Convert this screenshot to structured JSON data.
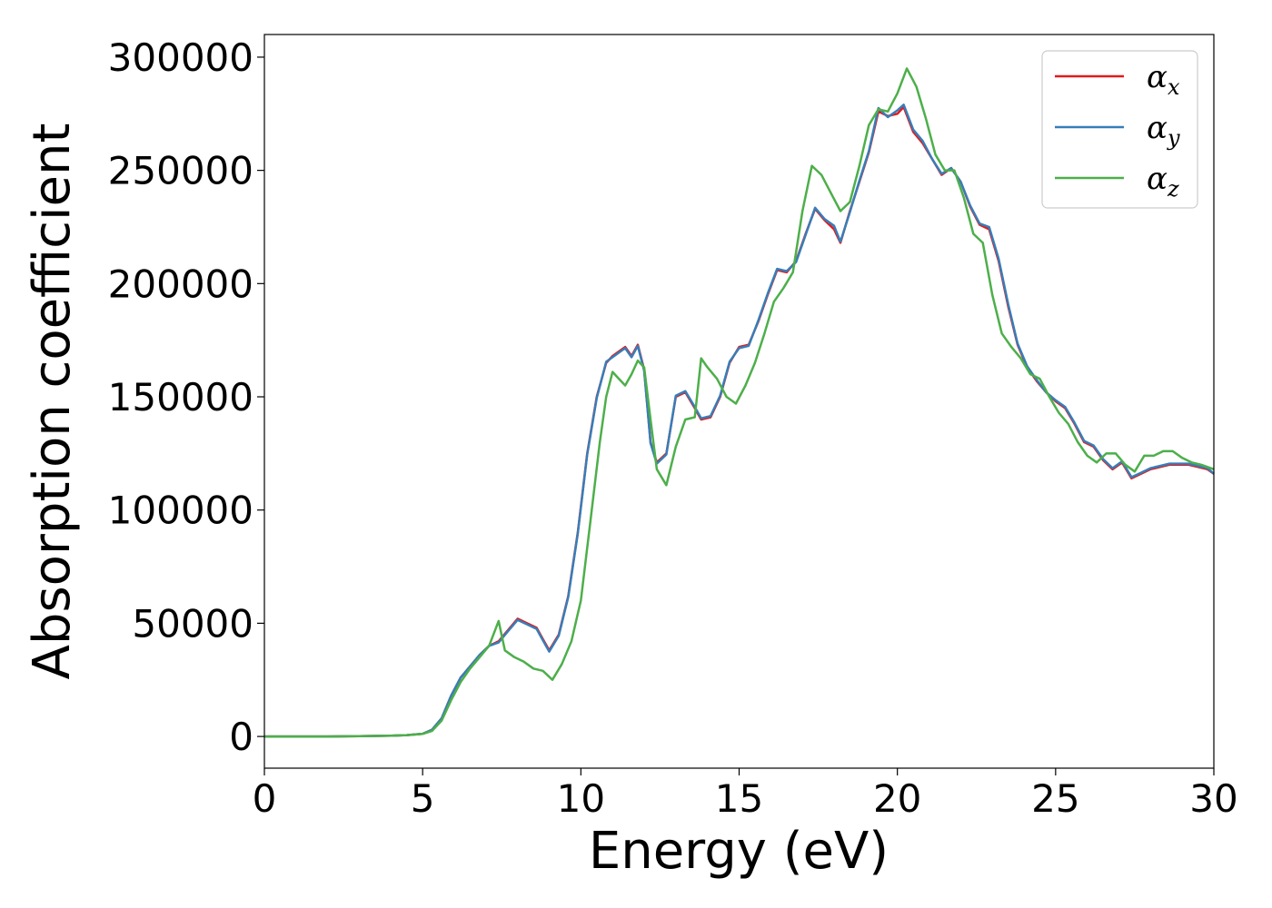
{
  "chart_data": {
    "type": "line",
    "title": "",
    "xlabel": "Energy (eV)",
    "ylabel": "Absorption coefficient",
    "xlim": [
      0,
      30
    ],
    "ylim": [
      -14000,
      310000
    ],
    "xticks": [
      0,
      5,
      10,
      15,
      20,
      25,
      30
    ],
    "xtick_labels": [
      "0",
      "5",
      "10",
      "15",
      "20",
      "25",
      "30"
    ],
    "yticks": [
      0,
      50000,
      100000,
      150000,
      200000,
      250000,
      300000
    ],
    "ytick_labels": [
      "0",
      "50000",
      "100000",
      "150000",
      "200000",
      "250000",
      "300000"
    ],
    "grid": false,
    "legend_position": "top-right",
    "series": [
      {
        "name": "α",
        "subscript": "x",
        "color": "#e41a1c",
        "x": [
          0,
          1,
          2,
          3,
          4,
          4.5,
          5,
          5.3,
          5.6,
          5.9,
          6.2,
          6.5,
          6.8,
          7.1,
          7.4,
          7.7,
          8.0,
          8.3,
          8.6,
          8.8,
          9.0,
          9.3,
          9.6,
          9.9,
          10.2,
          10.5,
          10.8,
          11.0,
          11.2,
          11.4,
          11.6,
          11.8,
          12.0,
          12.2,
          12.4,
          12.7,
          13.0,
          13.3,
          13.6,
          13.8,
          14.1,
          14.4,
          14.7,
          15.0,
          15.3,
          15.6,
          15.9,
          16.2,
          16.5,
          16.8,
          17.1,
          17.4,
          17.7,
          18.0,
          18.2,
          18.5,
          18.8,
          19.1,
          19.4,
          19.7,
          20.0,
          20.2,
          20.5,
          20.8,
          21.1,
          21.4,
          21.7,
          22.0,
          22.3,
          22.6,
          22.9,
          23.2,
          23.5,
          23.8,
          24.1,
          24.4,
          24.7,
          25.0,
          25.3,
          25.6,
          25.9,
          26.2,
          26.5,
          26.8,
          27.1,
          27.4,
          27.7,
          28.0,
          28.3,
          28.6,
          28.9,
          29.2,
          29.5,
          29.8,
          30.0
        ],
        "y": [
          0,
          0,
          0,
          100,
          300,
          600,
          1200,
          3000,
          8000,
          18000,
          26000,
          31000,
          36000,
          40000,
          42000,
          47000,
          52000,
          50000,
          48000,
          43000,
          38000,
          45000,
          62000,
          90000,
          125000,
          150000,
          165000,
          168000,
          170000,
          172000,
          168000,
          173000,
          162000,
          130000,
          121000,
          125000,
          150000,
          152000,
          145000,
          140000,
          141000,
          150000,
          165000,
          172000,
          173000,
          183000,
          195000,
          206000,
          205000,
          210000,
          222000,
          233000,
          228000,
          224000,
          218000,
          232000,
          245000,
          258000,
          276000,
          274000,
          275000,
          278000,
          267000,
          262000,
          255000,
          248000,
          251000,
          245000,
          234000,
          226000,
          224000,
          210000,
          190000,
          173000,
          163000,
          157000,
          152000,
          148000,
          145000,
          138000,
          130000,
          128000,
          122000,
          118000,
          121000,
          114000,
          116000,
          118000,
          119000,
          120000,
          120000,
          120000,
          119000,
          118000,
          116000
        ]
      },
      {
        "name": "α",
        "subscript": "y",
        "color": "#377eb8",
        "x": [
          0,
          1,
          2,
          3,
          4,
          4.5,
          5,
          5.3,
          5.6,
          5.9,
          6.2,
          6.5,
          6.8,
          7.1,
          7.4,
          7.7,
          8.0,
          8.3,
          8.6,
          8.8,
          9.0,
          9.3,
          9.6,
          9.9,
          10.2,
          10.5,
          10.8,
          11.0,
          11.2,
          11.4,
          11.6,
          11.8,
          12.0,
          12.2,
          12.4,
          12.7,
          13.0,
          13.3,
          13.6,
          13.8,
          14.1,
          14.4,
          14.7,
          15.0,
          15.3,
          15.6,
          15.9,
          16.2,
          16.5,
          16.8,
          17.1,
          17.4,
          17.7,
          18.0,
          18.2,
          18.5,
          18.8,
          19.1,
          19.4,
          19.7,
          20.0,
          20.2,
          20.5,
          20.8,
          21.1,
          21.4,
          21.7,
          22.0,
          22.3,
          22.6,
          22.9,
          23.2,
          23.5,
          23.8,
          24.1,
          24.4,
          24.7,
          25.0,
          25.3,
          25.6,
          25.9,
          26.2,
          26.5,
          26.8,
          27.1,
          27.4,
          27.7,
          28.0,
          28.3,
          28.6,
          28.9,
          29.2,
          29.5,
          29.8,
          30.0
        ],
        "y": [
          0,
          0,
          0,
          100,
          300,
          600,
          1200,
          3000,
          8000,
          18000,
          26000,
          31000,
          36000,
          40000,
          41500,
          46500,
          51500,
          49500,
          47500,
          42500,
          37500,
          44500,
          61500,
          89500,
          124500,
          149500,
          165500,
          167500,
          169500,
          171500,
          167500,
          172500,
          161500,
          129500,
          120500,
          124500,
          150500,
          152500,
          145500,
          140500,
          141500,
          150500,
          165500,
          171500,
          172500,
          183500,
          195500,
          206500,
          205500,
          209500,
          221500,
          233500,
          228500,
          225500,
          218500,
          231500,
          245500,
          258500,
          277500,
          273500,
          276500,
          279000,
          268000,
          263000,
          255000,
          248500,
          251000,
          245000,
          234500,
          226500,
          225000,
          211000,
          191000,
          173500,
          163500,
          157500,
          152000,
          148500,
          145500,
          138500,
          130500,
          128500,
          122500,
          118500,
          121500,
          114500,
          116500,
          118500,
          119500,
          120500,
          120500,
          120500,
          119500,
          118500,
          116000
        ]
      },
      {
        "name": "α",
        "subscript": "z",
        "color": "#4daf4a",
        "x": [
          0,
          1,
          2,
          3,
          4,
          4.5,
          5,
          5.3,
          5.6,
          5.9,
          6.2,
          6.5,
          6.8,
          7.1,
          7.4,
          7.6,
          7.9,
          8.2,
          8.5,
          8.8,
          9.1,
          9.4,
          9.7,
          10.0,
          10.3,
          10.6,
          10.8,
          11.0,
          11.2,
          11.4,
          11.6,
          11.8,
          12.0,
          12.2,
          12.4,
          12.7,
          13.0,
          13.3,
          13.6,
          13.8,
          14.0,
          14.3,
          14.6,
          14.9,
          15.2,
          15.5,
          15.8,
          16.1,
          16.4,
          16.7,
          17.0,
          17.3,
          17.6,
          17.9,
          18.2,
          18.5,
          18.8,
          19.1,
          19.4,
          19.7,
          20.0,
          20.3,
          20.6,
          20.9,
          21.2,
          21.5,
          21.8,
          22.1,
          22.4,
          22.7,
          23.0,
          23.3,
          23.6,
          23.9,
          24.2,
          24.5,
          24.8,
          25.1,
          25.4,
          25.7,
          26.0,
          26.3,
          26.6,
          26.9,
          27.2,
          27.5,
          27.8,
          28.1,
          28.4,
          28.7,
          29.0,
          29.3,
          29.6,
          30.0
        ],
        "y": [
          0,
          0,
          0,
          100,
          300,
          600,
          1100,
          2500,
          7000,
          16000,
          24000,
          30000,
          35000,
          40000,
          51000,
          38000,
          35000,
          33000,
          30000,
          29000,
          25000,
          32000,
          42000,
          60000,
          95000,
          130000,
          150000,
          161000,
          158000,
          155000,
          160000,
          166000,
          163000,
          140000,
          118000,
          111000,
          128000,
          140000,
          141000,
          167000,
          163000,
          158000,
          150000,
          147000,
          155000,
          165000,
          178000,
          192000,
          198000,
          205000,
          232000,
          252000,
          248000,
          240000,
          232000,
          236000,
          252000,
          270000,
          277000,
          276000,
          284000,
          295000,
          287000,
          273000,
          257000,
          250000,
          250000,
          238000,
          222000,
          218000,
          195000,
          178000,
          172000,
          167000,
          160000,
          158000,
          150000,
          143000,
          138000,
          130000,
          124000,
          121000,
          125000,
          125000,
          120000,
          117000,
          124000,
          124000,
          126000,
          126000,
          123000,
          121000,
          120000,
          118000
        ]
      }
    ]
  }
}
